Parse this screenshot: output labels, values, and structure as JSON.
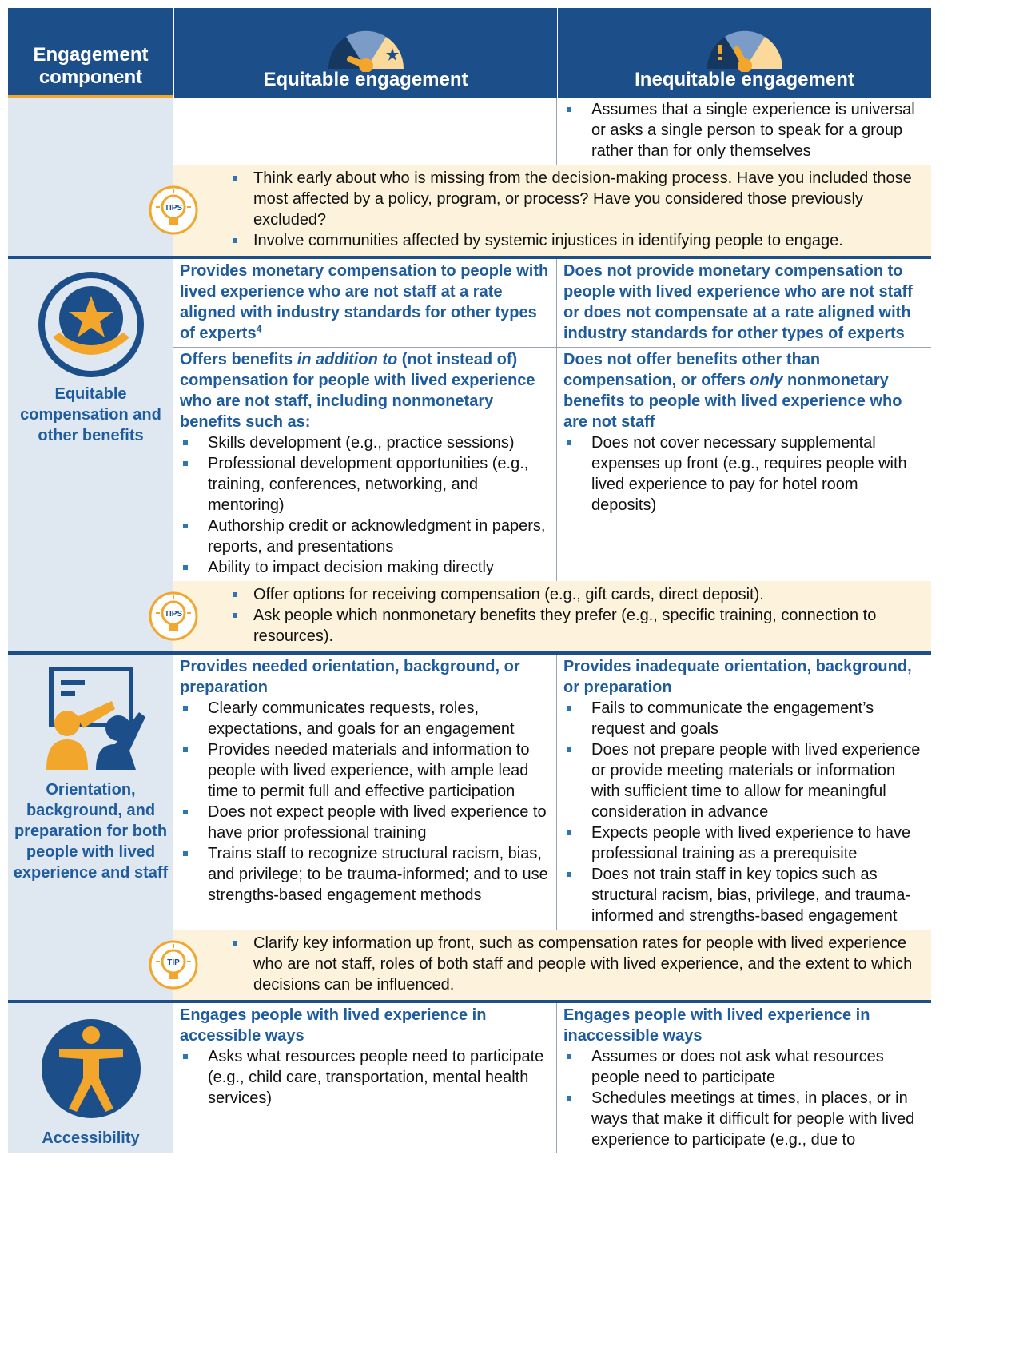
{
  "header": {
    "component": "Engagement component",
    "equitable": "Equitable engagement",
    "inequitable": "Inequitable engagement"
  },
  "sections": [
    {
      "rows": [
        {
          "inequitable": {
            "bullets": [
              "Assumes that a single experience is universal or asks a single person to speak for a group rather than for only themselves"
            ]
          }
        }
      ],
      "tips": {
        "badge": "TIPS",
        "items": [
          "Think early about who is missing from the decision-making process. Have you included those most affected by a policy, program, or process? Have you considered those previously excluded?",
          "Involve communities affected by systemic injustices in identifying people to engage."
        ]
      }
    },
    {
      "component": "Equitable compensation and other benefits",
      "rows": [
        {
          "equitable": {
            "heading": [
              "Provides monetary compensation to people with lived experience who are not staff at a rate aligned with industry standards for other types of experts"
            ],
            "footnote": "4"
          },
          "inequitable": {
            "heading": [
              "Does not provide monetary compensation to people with lived experience who are not staff or does not compensate at a rate aligned with industry standards for other types of experts"
            ]
          }
        },
        {
          "equitable": {
            "heading": [
              "Offers benefits ",
              "in addition to",
              " (not instead of) compensation for people with lived experience who are not staff, including nonmonetary benefits such as:"
            ],
            "bullets": [
              "Skills development (e.g., practice sessions)",
              "Professional development opportunities (e.g., training, conferences, networking, and mentoring)",
              "Authorship credit or acknowledgment in papers, reports, and presentations",
              "Ability to impact decision making directly"
            ]
          },
          "inequitable": {
            "heading": [
              "Does not offer benefits other than compensation, or offers ",
              "only",
              " nonmonetary benefits to people with lived experience who are not staff"
            ],
            "bullets": [
              "Does not cover necessary supplemental expenses up front (e.g., requires people with lived experience to pay for hotel room deposits)"
            ]
          }
        }
      ],
      "tips": {
        "badge": "TIPS",
        "items": [
          "Offer options for receiving compensation (e.g., gift cards, direct deposit).",
          "Ask people which nonmonetary benefits they prefer (e.g., specific training, connection to resources)."
        ]
      }
    },
    {
      "component": "Orientation, background, and preparation for both people with lived experience and staff",
      "rows": [
        {
          "equitable": {
            "heading": [
              "Provides needed orientation, background, or preparation"
            ],
            "bullets": [
              "Clearly communicates requests, roles, expectations, and goals for an engagement",
              "Provides needed materials and information to people with lived experience, with ample lead time to permit full and effective participation",
              "Does not expect people with lived experience to have prior professional training",
              "Trains staff to recognize structural racism, bias, and privilege; to be trauma-informed; and to use strengths-based engagement methods"
            ]
          },
          "inequitable": {
            "heading": [
              "Provides inadequate orientation, background, or preparation"
            ],
            "bullets": [
              "Fails to communicate the engagement’s request and goals",
              "Does not prepare people with lived experience or provide meeting materials or information with sufficient time to allow for meaningful consideration in advance",
              "Expects people with lived experience to have professional training as a prerequisite",
              "Does not train staff in key topics such as structural racism, bias, privilege, and trauma-informed and strengths-based engagement"
            ]
          }
        }
      ],
      "tips": {
        "badge": "TIP",
        "items": [
          "Clarify key information up front, such as compensation rates for people with lived experience who are not staff, roles of both staff and people with lived experience, and the extent to which decisions can be influenced."
        ]
      }
    },
    {
      "component": "Accessibility",
      "rows": [
        {
          "equitable": {
            "heading": [
              "Engages people with lived experience in accessible ways"
            ],
            "bullets": [
              "Asks what resources people need to participate (e.g., child care, transportation, mental health services)"
            ]
          },
          "inequitable": {
            "heading": [
              "Engages people with lived experience in inaccessible ways"
            ],
            "bullets": [
              "Assumes or does not ask what resources people need to participate",
              "Schedules meetings at times, in places, or in ways that make it difficult for people with lived experience to participate (e.g., due to"
            ]
          }
        }
      ]
    }
  ]
}
